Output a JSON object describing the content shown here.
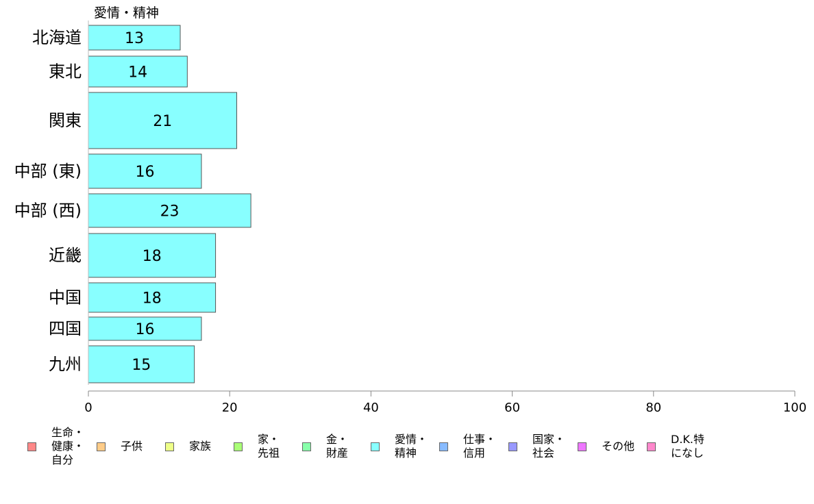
{
  "chart_data": {
    "type": "bar",
    "orientation": "horizontal",
    "categories": [
      "北海道",
      "東北",
      "関東",
      "中部 (東)",
      "中部 (西)",
      "近畿",
      "中国",
      "四国",
      "九州"
    ],
    "series": [
      {
        "name": "愛情・精神",
        "values": [
          13,
          14,
          21,
          16,
          23,
          18,
          18,
          16,
          15
        ],
        "color": "#88ffff"
      }
    ],
    "bar_labels": [
      "13",
      "14",
      "21",
      "16",
      "23",
      "18",
      "18",
      "16",
      "15"
    ],
    "series_title": "愛情・精神",
    "xlim": [
      0,
      100
    ],
    "xticks": [
      0,
      20,
      40,
      60,
      80,
      100
    ],
    "grid": false,
    "legend_position": "bottom",
    "legend": [
      {
        "label": "生命・\n健康・\n自分",
        "color": "#ff8888"
      },
      {
        "label": "子供",
        "color": "#ffcc88"
      },
      {
        "label": "家族",
        "color": "#eeff88"
      },
      {
        "label": "家・\n先祖",
        "color": "#aaff77"
      },
      {
        "label": "金・\n財産",
        "color": "#88ffaa"
      },
      {
        "label": "愛情・\n精神",
        "color": "#88ffff"
      },
      {
        "label": "仕事・\n信用",
        "color": "#88bbff"
      },
      {
        "label": "国家・\n社会",
        "color": "#9999ff"
      },
      {
        "label": "その他",
        "color": "#ee77ff"
      },
      {
        "label": "D.K.特\nになし",
        "color": "#ff88cc"
      }
    ]
  }
}
